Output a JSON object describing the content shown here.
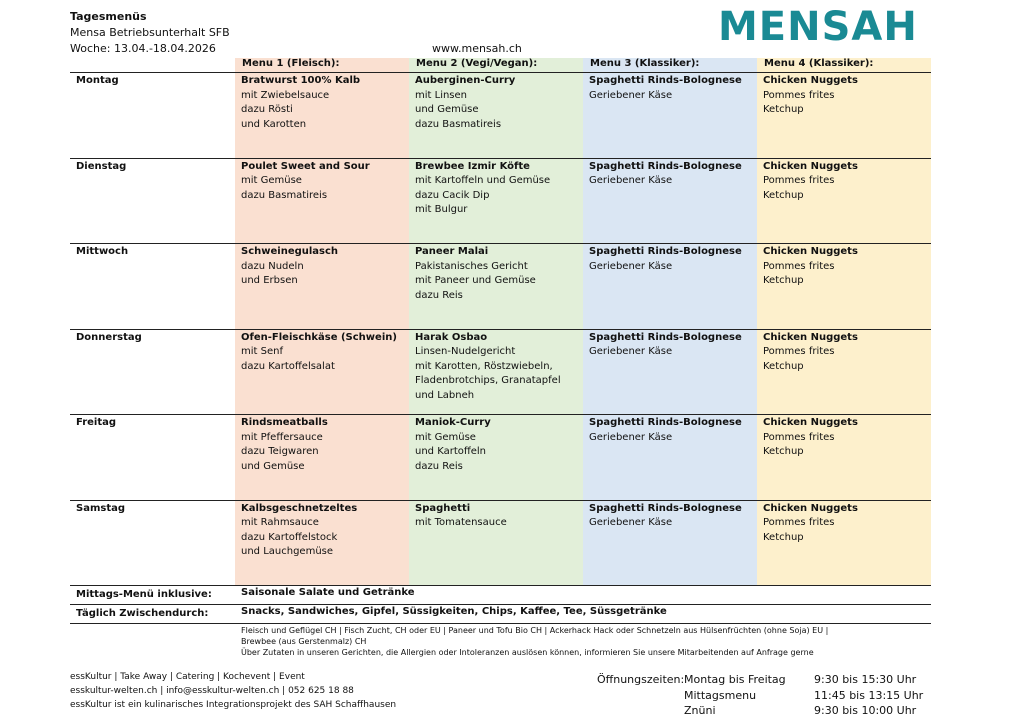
{
  "header": {
    "title": "Tagesmenüs",
    "subtitle": "Mensa Betriebsunterhalt SFB",
    "week": "Woche: 13.04.-18.04.2026",
    "website": "www.mensah.ch",
    "logo": "MENSAH"
  },
  "table": {
    "columns": [
      "Menu 1 (Fleisch):",
      "Menu 2 (Vegi/Vegan):",
      "Menu 3 (Klassiker):",
      "Menu 4 (Klassiker):"
    ],
    "days": [
      {
        "day": "Montag",
        "dishes": [
          [
            "Bratwurst 100% Kalb",
            "mit Zwiebelsauce",
            "dazu Rösti",
            "und Karotten"
          ],
          [
            "Auberginen-Curry",
            "mit Linsen",
            "und Gemüse",
            "dazu Basmatireis"
          ],
          [
            "Spaghetti Rinds-Bolognese",
            "Geriebener Käse"
          ],
          [
            "Chicken Nuggets",
            "Pommes frites",
            "Ketchup"
          ]
        ]
      },
      {
        "day": "Dienstag",
        "dishes": [
          [
            "Poulet Sweet and Sour",
            "mit Gemüse",
            "dazu Basmatireis"
          ],
          [
            "Brewbee Izmir Köfte",
            "mit Kartoffeln und Gemüse",
            "dazu Cacik Dip",
            "mit Bulgur"
          ],
          [
            "Spaghetti Rinds-Bolognese",
            "Geriebener Käse"
          ],
          [
            "Chicken Nuggets",
            "Pommes frites",
            "Ketchup"
          ]
        ]
      },
      {
        "day": "Mittwoch",
        "dishes": [
          [
            "Schweinegulasch",
            "dazu Nudeln",
            "und Erbsen"
          ],
          [
            "Paneer Malai",
            "Pakistanisches Gericht",
            "mit Paneer und Gemüse",
            "dazu Reis"
          ],
          [
            "Spaghetti Rinds-Bolognese",
            "Geriebener Käse"
          ],
          [
            "Chicken Nuggets",
            "Pommes frites",
            "Ketchup"
          ]
        ]
      },
      {
        "day": "Donnerstag",
        "dishes": [
          [
            "Ofen-Fleischkäse (Schwein)",
            "mit Senf",
            "dazu Kartoffelsalat"
          ],
          [
            "Harak Osbao",
            "Linsen-Nudelgericht",
            "mit Karotten, Röstzwiebeln,",
            "Fladenbrotchips, Granatapfel",
            "und Labneh"
          ],
          [
            "Spaghetti Rinds-Bolognese",
            "Geriebener Käse"
          ],
          [
            "Chicken Nuggets",
            "Pommes frites",
            "Ketchup"
          ]
        ]
      },
      {
        "day": "Freitag",
        "dishes": [
          [
            "Rindsmeatballs",
            "mit Pfeffersauce",
            "dazu Teigwaren",
            "und Gemüse"
          ],
          [
            "Maniok-Curry",
            "mit Gemüse",
            "und Kartoffeln",
            "dazu Reis"
          ],
          [
            "Spaghetti Rinds-Bolognese",
            "Geriebener Käse"
          ],
          [
            "Chicken Nuggets",
            "Pommes frites",
            "Ketchup"
          ]
        ]
      },
      {
        "day": "Samstag",
        "dishes": [
          [
            "Kalbsgeschnetzeltes",
            "mit Rahmsauce",
            "dazu Kartoffelstock",
            "und Lauchgemüse"
          ],
          [
            "Spaghetti",
            "mit Tomatensauce"
          ],
          [
            "Spaghetti Rinds-Bolognese",
            "Geriebener Käse"
          ],
          [
            "Chicken Nuggets",
            "Pommes frites",
            "Ketchup"
          ]
        ]
      }
    ],
    "extras": [
      {
        "label": "Mittags-Menü inklusive:",
        "text": "Saisonale Salate und Getränke"
      },
      {
        "label": "Täglich Zwischendurch:",
        "text": "Snacks, Sandwiches, Gipfel, Süssigkeiten, Chips, Kaffee, Tee, Süssgetränke"
      }
    ]
  },
  "notes": [
    "Fleisch und Geflügel CH | Fisch Zucht, CH oder EU | Paneer und Tofu Bio CH | Ackerhack Hack oder Schnetzeln aus Hülsenfrüchten (ohne Soja)  EU | Brewbee (aus Gerstenmalz) CH",
    "Über Zutaten in unseren Gerichten, die Allergien oder Intoleranzen auslösen können, informieren Sie unsere Mitarbeitenden auf Anfrage gerne"
  ],
  "footer": {
    "company": [
      "essKultur | Take Away | Catering | Kochevent | Event",
      "esskultur-welten.ch | info@esskultur-welten.ch | 052 625 18 88",
      "essKultur ist ein kulinarisches Integrationsprojekt des SAH Schaffhausen"
    ],
    "hours_label": "Öffnungszeiten:",
    "hours": [
      [
        "Montag bis Freitag",
        "9:30 bis 15:30 Uhr"
      ],
      [
        "Mittagsmenu",
        "11:45 bis 13:15 Uhr"
      ],
      [
        "Znüni",
        "9:30 bis 10:00 Uhr"
      ]
    ]
  }
}
